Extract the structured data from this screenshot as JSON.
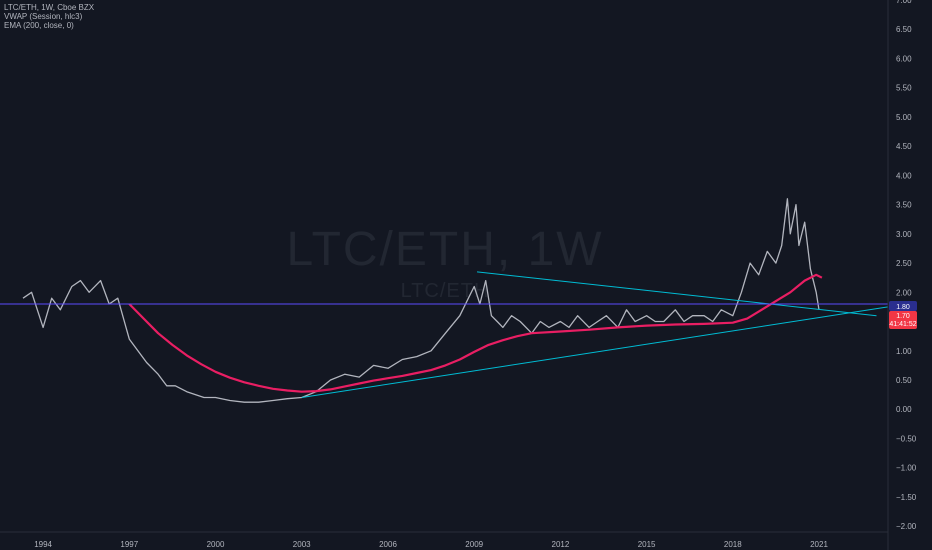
{
  "legend": {
    "symbol": "LTC/ETH, 1W, Cboe BZX",
    "vwap": "VWAP (Session, hlc3)",
    "ema": "EMA (200, close, 0)"
  },
  "watermark": {
    "main": "LTC/ETH, 1W",
    "sub": "LTC/ETH"
  },
  "price_badges": {
    "horizontal_line": "1.80",
    "last_price": "1.70",
    "countdown": "41:41:52"
  },
  "colors": {
    "background": "#131722",
    "price_bars": "#b2b5be",
    "ema": "#e91e63",
    "trendlines": "#00bcd4",
    "horizontal_line": "#5b4bff",
    "last_price_badge": "#f23645",
    "level_badge": "#2a2e8f"
  },
  "chart_data": {
    "type": "line",
    "xlim": [
      1992.5,
      2023.4
    ],
    "ylim": [
      -2.1,
      7.0
    ],
    "grid": false,
    "x_ticks": [
      1994,
      1997,
      2000,
      2003,
      2006,
      2009,
      2012,
      2015,
      2018,
      2021
    ],
    "x_tick_labels": [
      "1994",
      "1997",
      "2000",
      "2003",
      "2006",
      "2009",
      "2012",
      "2015",
      "2018",
      "2021"
    ],
    "y_ticks": [
      7.0,
      6.5,
      6.0,
      5.5,
      5.0,
      4.5,
      4.0,
      3.5,
      3.0,
      2.5,
      2.0,
      1.5,
      1.0,
      0.5,
      0.0,
      -0.5,
      -1.0,
      -1.5,
      -2.0
    ],
    "y_tick_labels": [
      "7.00",
      "6.50",
      "6.00",
      "5.50",
      "5.00",
      "4.50",
      "4.00",
      "3.50",
      "3.00",
      "2.50",
      "2.00",
      "1.50",
      "1.00",
      "0.50",
      "0.00",
      "−0.50",
      "−1.00",
      "−1.50",
      "−2.00"
    ],
    "series": [
      {
        "kind": "price",
        "x": [
          1993.3,
          1993.6,
          1994.0,
          1994.3,
          1994.6,
          1995.0,
          1995.3,
          1995.6,
          1996.0,
          1996.3,
          1996.6,
          1997.0,
          1997.3,
          1997.6,
          1998.0,
          1998.3,
          1998.6,
          1999.0,
          1999.3,
          1999.6,
          2000.0,
          2000.5,
          2001.0,
          2001.5,
          2002.0,
          2002.5,
          2003.0,
          2003.5,
          2004.0,
          2004.5,
          2005.0,
          2005.5,
          2006.0,
          2006.5,
          2007.0,
          2007.5,
          2008.0,
          2008.5,
          2008.8,
          2009.0,
          2009.2,
          2009.4,
          2009.6,
          2009.8,
          2010.0,
          2010.3,
          2010.6,
          2011.0,
          2011.3,
          2011.6,
          2012.0,
          2012.3,
          2012.6,
          2013.0,
          2013.3,
          2013.6,
          2014.0,
          2014.3,
          2014.6,
          2015.0,
          2015.3,
          2015.6,
          2016.0,
          2016.3,
          2016.6,
          2017.0,
          2017.3,
          2017.6,
          2018.0,
          2018.3,
          2018.6,
          2018.9,
          2019.2,
          2019.5,
          2019.7,
          2019.9,
          2020.0,
          2020.2,
          2020.3,
          2020.5,
          2020.7,
          2020.9,
          2021.0
        ],
        "values": [
          1.9,
          2.0,
          1.4,
          1.9,
          1.7,
          2.1,
          2.2,
          2.0,
          2.2,
          1.8,
          1.9,
          1.2,
          1.0,
          0.8,
          0.6,
          0.4,
          0.4,
          0.3,
          0.25,
          0.2,
          0.2,
          0.15,
          0.12,
          0.12,
          0.15,
          0.18,
          0.2,
          0.3,
          0.5,
          0.6,
          0.55,
          0.75,
          0.7,
          0.85,
          0.9,
          1.0,
          1.3,
          1.6,
          1.9,
          2.1,
          1.8,
          2.2,
          1.6,
          1.5,
          1.4,
          1.6,
          1.5,
          1.3,
          1.5,
          1.4,
          1.5,
          1.4,
          1.6,
          1.4,
          1.5,
          1.6,
          1.4,
          1.7,
          1.5,
          1.6,
          1.5,
          1.5,
          1.7,
          1.5,
          1.6,
          1.6,
          1.5,
          1.7,
          1.6,
          2.0,
          2.5,
          2.3,
          2.7,
          2.5,
          2.8,
          3.6,
          3.0,
          3.5,
          2.8,
          3.2,
          2.4,
          2.0,
          1.7
        ]
      },
      {
        "kind": "ema",
        "x": [
          1997.0,
          1997.5,
          1998.0,
          1998.5,
          1999.0,
          1999.5,
          2000.0,
          2000.5,
          2001.0,
          2001.5,
          2002.0,
          2002.5,
          2003.0,
          2003.5,
          2004.0,
          2004.5,
          2005.0,
          2005.5,
          2006.0,
          2006.5,
          2007.0,
          2007.5,
          2008.0,
          2008.5,
          2009.0,
          2009.5,
          2010.0,
          2010.5,
          2011.0,
          2012.0,
          2013.0,
          2014.0,
          2015.0,
          2016.0,
          2017.0,
          2018.0,
          2018.5,
          2019.0,
          2019.5,
          2020.0,
          2020.5,
          2020.9,
          2021.1
        ],
        "values": [
          1.8,
          1.55,
          1.3,
          1.1,
          0.92,
          0.77,
          0.64,
          0.54,
          0.46,
          0.4,
          0.35,
          0.32,
          0.3,
          0.31,
          0.34,
          0.39,
          0.44,
          0.49,
          0.53,
          0.57,
          0.62,
          0.67,
          0.75,
          0.85,
          0.98,
          1.1,
          1.18,
          1.25,
          1.3,
          1.33,
          1.36,
          1.4,
          1.43,
          1.45,
          1.46,
          1.48,
          1.55,
          1.7,
          1.85,
          2.0,
          2.2,
          2.3,
          2.25
        ]
      }
    ],
    "trendlines": [
      {
        "x": [
          2009.1,
          2023.0
        ],
        "y": [
          2.35,
          1.6
        ]
      },
      {
        "x": [
          2003.0,
          2023.4
        ],
        "y": [
          0.2,
          1.75
        ]
      }
    ],
    "horizontal_line": {
      "y": 1.8
    }
  }
}
